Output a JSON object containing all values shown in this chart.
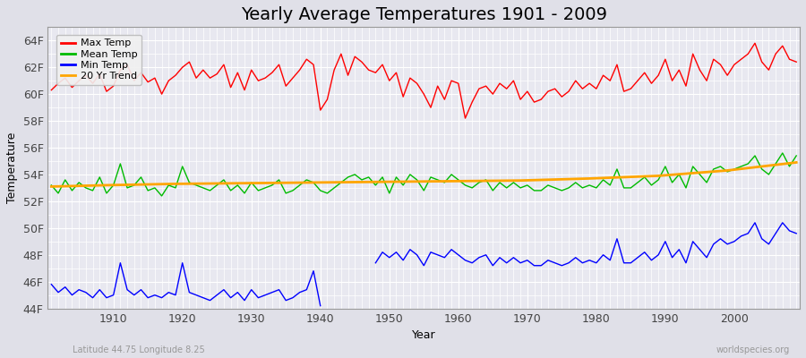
{
  "title": "Yearly Average Temperatures 1901 - 2009",
  "xlabel": "Year",
  "ylabel": "Temperature",
  "subtitle_left": "Latitude 44.75 Longitude 8.25",
  "subtitle_right": "worldspecies.org",
  "legend_labels": [
    "Max Temp",
    "Mean Temp",
    "Min Temp",
    "20 Yr Trend"
  ],
  "legend_colors": [
    "#ff0000",
    "#00bb00",
    "#0000ff",
    "#ffa500"
  ],
  "years": [
    1901,
    1902,
    1903,
    1904,
    1905,
    1906,
    1907,
    1908,
    1909,
    1910,
    1911,
    1912,
    1913,
    1914,
    1915,
    1916,
    1917,
    1918,
    1919,
    1920,
    1921,
    1922,
    1923,
    1924,
    1925,
    1926,
    1927,
    1928,
    1929,
    1930,
    1931,
    1932,
    1933,
    1934,
    1935,
    1936,
    1937,
    1938,
    1939,
    1940,
    1941,
    1942,
    1943,
    1944,
    1945,
    1946,
    1947,
    1948,
    1949,
    1950,
    1951,
    1952,
    1953,
    1954,
    1955,
    1956,
    1957,
    1958,
    1959,
    1960,
    1961,
    1962,
    1963,
    1964,
    1965,
    1966,
    1967,
    1968,
    1969,
    1970,
    1971,
    1972,
    1973,
    1974,
    1975,
    1976,
    1977,
    1978,
    1979,
    1980,
    1981,
    1982,
    1983,
    1984,
    1985,
    1986,
    1987,
    1988,
    1989,
    1990,
    1991,
    1992,
    1993,
    1994,
    1995,
    1996,
    1997,
    1998,
    1999,
    2000,
    2001,
    2002,
    2003,
    2004,
    2005,
    2006,
    2007,
    2008,
    2009
  ],
  "max_temp": [
    60.3,
    60.8,
    61.2,
    60.5,
    61.0,
    61.4,
    60.8,
    61.5,
    60.2,
    60.6,
    61.8,
    62.2,
    61.0,
    61.6,
    60.9,
    61.2,
    60.0,
    61.0,
    61.4,
    62.0,
    62.4,
    61.2,
    61.8,
    61.2,
    61.5,
    62.2,
    60.5,
    61.6,
    60.3,
    61.8,
    61.0,
    61.2,
    61.6,
    62.2,
    60.6,
    61.2,
    61.8,
    62.6,
    62.2,
    58.8,
    59.6,
    61.8,
    63.0,
    61.4,
    62.8,
    62.4,
    61.8,
    61.6,
    62.2,
    61.0,
    61.6,
    59.8,
    61.2,
    60.8,
    60.0,
    59.0,
    60.6,
    59.6,
    61.0,
    60.8,
    58.2,
    59.4,
    60.4,
    60.6,
    60.0,
    60.8,
    60.4,
    61.0,
    59.6,
    60.2,
    59.4,
    59.6,
    60.2,
    60.4,
    59.8,
    60.2,
    61.0,
    60.4,
    60.8,
    60.4,
    61.4,
    61.0,
    62.2,
    60.2,
    60.4,
    61.0,
    61.6,
    60.8,
    61.4,
    62.6,
    61.0,
    61.8,
    60.6,
    63.0,
    61.8,
    61.0,
    62.6,
    62.2,
    61.4,
    62.2,
    62.6,
    63.0,
    63.8,
    62.4,
    61.8,
    63.0,
    63.6,
    62.6,
    62.4
  ],
  "mean_temp": [
    53.2,
    52.6,
    53.6,
    52.8,
    53.4,
    53.0,
    52.8,
    53.8,
    52.6,
    53.2,
    54.8,
    53.0,
    53.2,
    53.8,
    52.8,
    53.0,
    52.4,
    53.2,
    53.0,
    54.6,
    53.4,
    53.2,
    53.0,
    52.8,
    53.2,
    53.6,
    52.8,
    53.2,
    52.6,
    53.4,
    52.8,
    53.0,
    53.2,
    53.6,
    52.6,
    52.8,
    53.2,
    53.6,
    53.4,
    52.8,
    52.6,
    53.0,
    53.4,
    53.8,
    54.0,
    53.6,
    53.8,
    53.2,
    53.8,
    52.6,
    53.8,
    53.2,
    54.0,
    53.6,
    52.8,
    53.8,
    53.6,
    53.4,
    54.0,
    53.6,
    53.2,
    53.0,
    53.4,
    53.6,
    52.8,
    53.4,
    53.0,
    53.4,
    53.0,
    53.2,
    52.8,
    52.8,
    53.2,
    53.0,
    52.8,
    53.0,
    53.4,
    53.0,
    53.2,
    53.0,
    53.6,
    53.2,
    54.4,
    53.0,
    53.0,
    53.4,
    53.8,
    53.2,
    53.6,
    54.6,
    53.4,
    54.0,
    53.0,
    54.6,
    54.0,
    53.4,
    54.4,
    54.6,
    54.2,
    54.4,
    54.6,
    54.8,
    55.4,
    54.4,
    54.0,
    54.8,
    55.6,
    54.6,
    55.4
  ],
  "min_temp": [
    45.8,
    45.2,
    45.6,
    45.0,
    45.4,
    45.2,
    44.8,
    45.4,
    44.8,
    45.0,
    47.4,
    45.4,
    45.0,
    45.4,
    44.8,
    45.0,
    44.8,
    45.2,
    45.0,
    47.4,
    45.2,
    45.0,
    44.8,
    44.6,
    45.0,
    45.4,
    44.8,
    45.2,
    44.6,
    45.4,
    44.8,
    45.0,
    45.2,
    45.4,
    44.6,
    44.8,
    45.2,
    45.4,
    46.8,
    44.2,
    null,
    null,
    null,
    null,
    null,
    null,
    null,
    47.4,
    48.2,
    47.8,
    48.2,
    47.6,
    48.4,
    48.0,
    47.2,
    48.2,
    48.0,
    47.8,
    48.4,
    48.0,
    47.6,
    47.4,
    47.8,
    48.0,
    47.2,
    47.8,
    47.4,
    47.8,
    47.4,
    47.6,
    47.2,
    47.2,
    47.6,
    47.4,
    47.2,
    47.4,
    47.8,
    47.4,
    47.6,
    47.4,
    48.0,
    47.6,
    49.2,
    47.4,
    47.4,
    47.8,
    48.2,
    47.6,
    48.0,
    49.0,
    47.8,
    48.4,
    47.4,
    49.0,
    48.4,
    47.8,
    48.8,
    49.2,
    48.8,
    49.0,
    49.4,
    49.6,
    50.4,
    49.2,
    48.8,
    49.6,
    50.4,
    49.8,
    49.6
  ],
  "trend_years": [
    1901,
    1909,
    1919,
    1929,
    1939,
    1949,
    1959,
    1969,
    1979,
    1989,
    1999,
    2009
  ],
  "trend_vals": [
    53.1,
    53.2,
    53.3,
    53.35,
    53.4,
    53.45,
    53.5,
    53.55,
    53.7,
    53.9,
    54.3,
    54.9
  ],
  "bg_color": "#e0e0e8",
  "plot_bg_color": "#e8e8f0",
  "grid_color": "#ffffff",
  "line_width": 1.0,
  "ylim": [
    44,
    65
  ],
  "yticks": [
    44,
    46,
    48,
    50,
    52,
    54,
    56,
    58,
    60,
    62,
    64
  ],
  "ytick_labels": [
    "44F",
    "46F",
    "48F",
    "50F",
    "52F",
    "54F",
    "56F",
    "58F",
    "60F",
    "62F",
    "64F"
  ],
  "xticks": [
    1910,
    1920,
    1930,
    1940,
    1950,
    1960,
    1970,
    1980,
    1990,
    2000
  ],
  "title_fontsize": 14,
  "axis_fontsize": 9
}
